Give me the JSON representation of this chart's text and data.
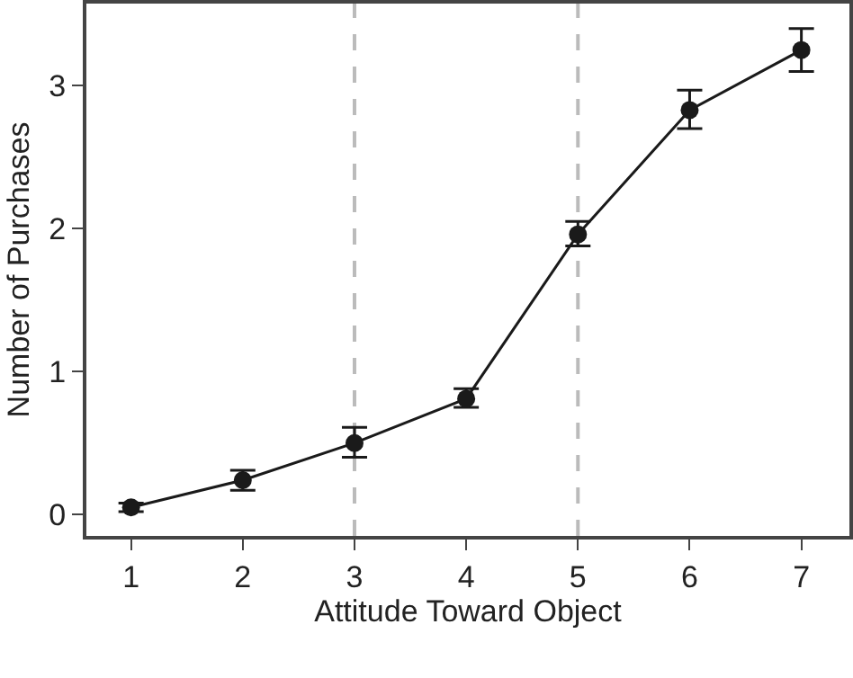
{
  "chart_data": {
    "type": "line",
    "xlabel": "Attitude Toward Object",
    "ylabel": "Number of Purchases",
    "x": [
      1,
      2,
      3,
      4,
      5,
      6,
      7
    ],
    "series": [
      {
        "color": "#1a1a1a",
        "values": [
          0.05,
          0.24,
          0.5,
          0.81,
          1.96,
          2.83,
          3.25
        ],
        "errors": [
          [
            0.02,
            0.08
          ],
          [
            0.17,
            0.31
          ],
          [
            0.4,
            0.61
          ],
          [
            0.75,
            0.88
          ],
          [
            1.88,
            2.05
          ],
          [
            2.7,
            2.97
          ],
          [
            3.1,
            3.4
          ]
        ]
      }
    ],
    "xlim": [
      0.6,
      7.43
    ],
    "xticks": [
      1,
      2,
      3,
      4,
      5,
      6,
      7
    ],
    "ylim": [
      -0.15,
      3.575
    ],
    "yticks": [
      0,
      1,
      2,
      3
    ],
    "ref_lines": [
      {
        "axis": "x",
        "value": 3,
        "color": "#bbbbbb",
        "line_style": "dashed"
      },
      {
        "axis": "x",
        "value": 5,
        "color": "#bbbbbb",
        "line_style": "dashed"
      }
    ],
    "marker": "circle",
    "line_style": "solid",
    "grid": false
  }
}
